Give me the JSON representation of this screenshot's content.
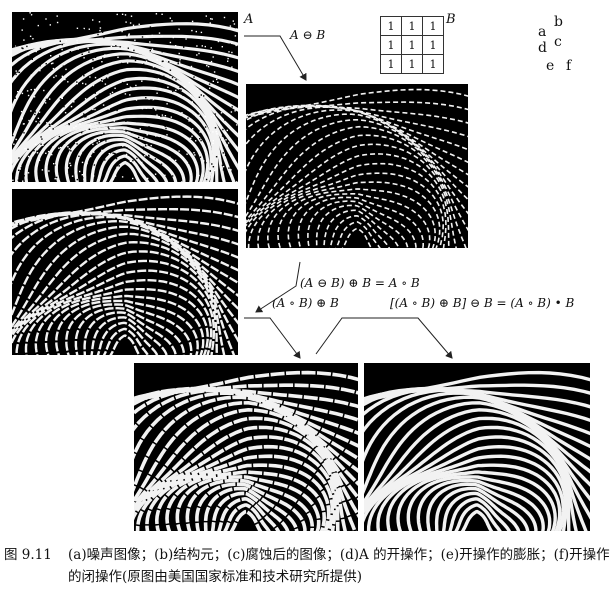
{
  "figure": {
    "labels": {
      "a": "A",
      "b": "B",
      "erosion": "A ⊖ B",
      "opening_eq": "(A ⊖ B) ⊕ B = A ∘ B",
      "dilation_of_opening": "(A ∘ B) ⊕ B",
      "closing_eq": "[(A ∘ B) ⊕ B] ⊖ B = (A ∘ B) • B"
    },
    "struct_element": [
      [
        "1",
        "1",
        "1"
      ],
      [
        "1",
        "1",
        "1"
      ],
      [
        "1",
        "1",
        "1"
      ]
    ],
    "key": {
      "a": "a",
      "b": "b",
      "c": "c",
      "d": "d",
      "e": "e",
      "f": "f"
    }
  },
  "caption": {
    "fig_number": "图 9.11",
    "text": "(a)噪声图像；(b)结构元；(c)腐蚀后的图像；(d)A 的开操作；(e)开操作的膨胀；(f)开操作的闭操作(原图由美国国家标准和技术研究所提供)"
  }
}
